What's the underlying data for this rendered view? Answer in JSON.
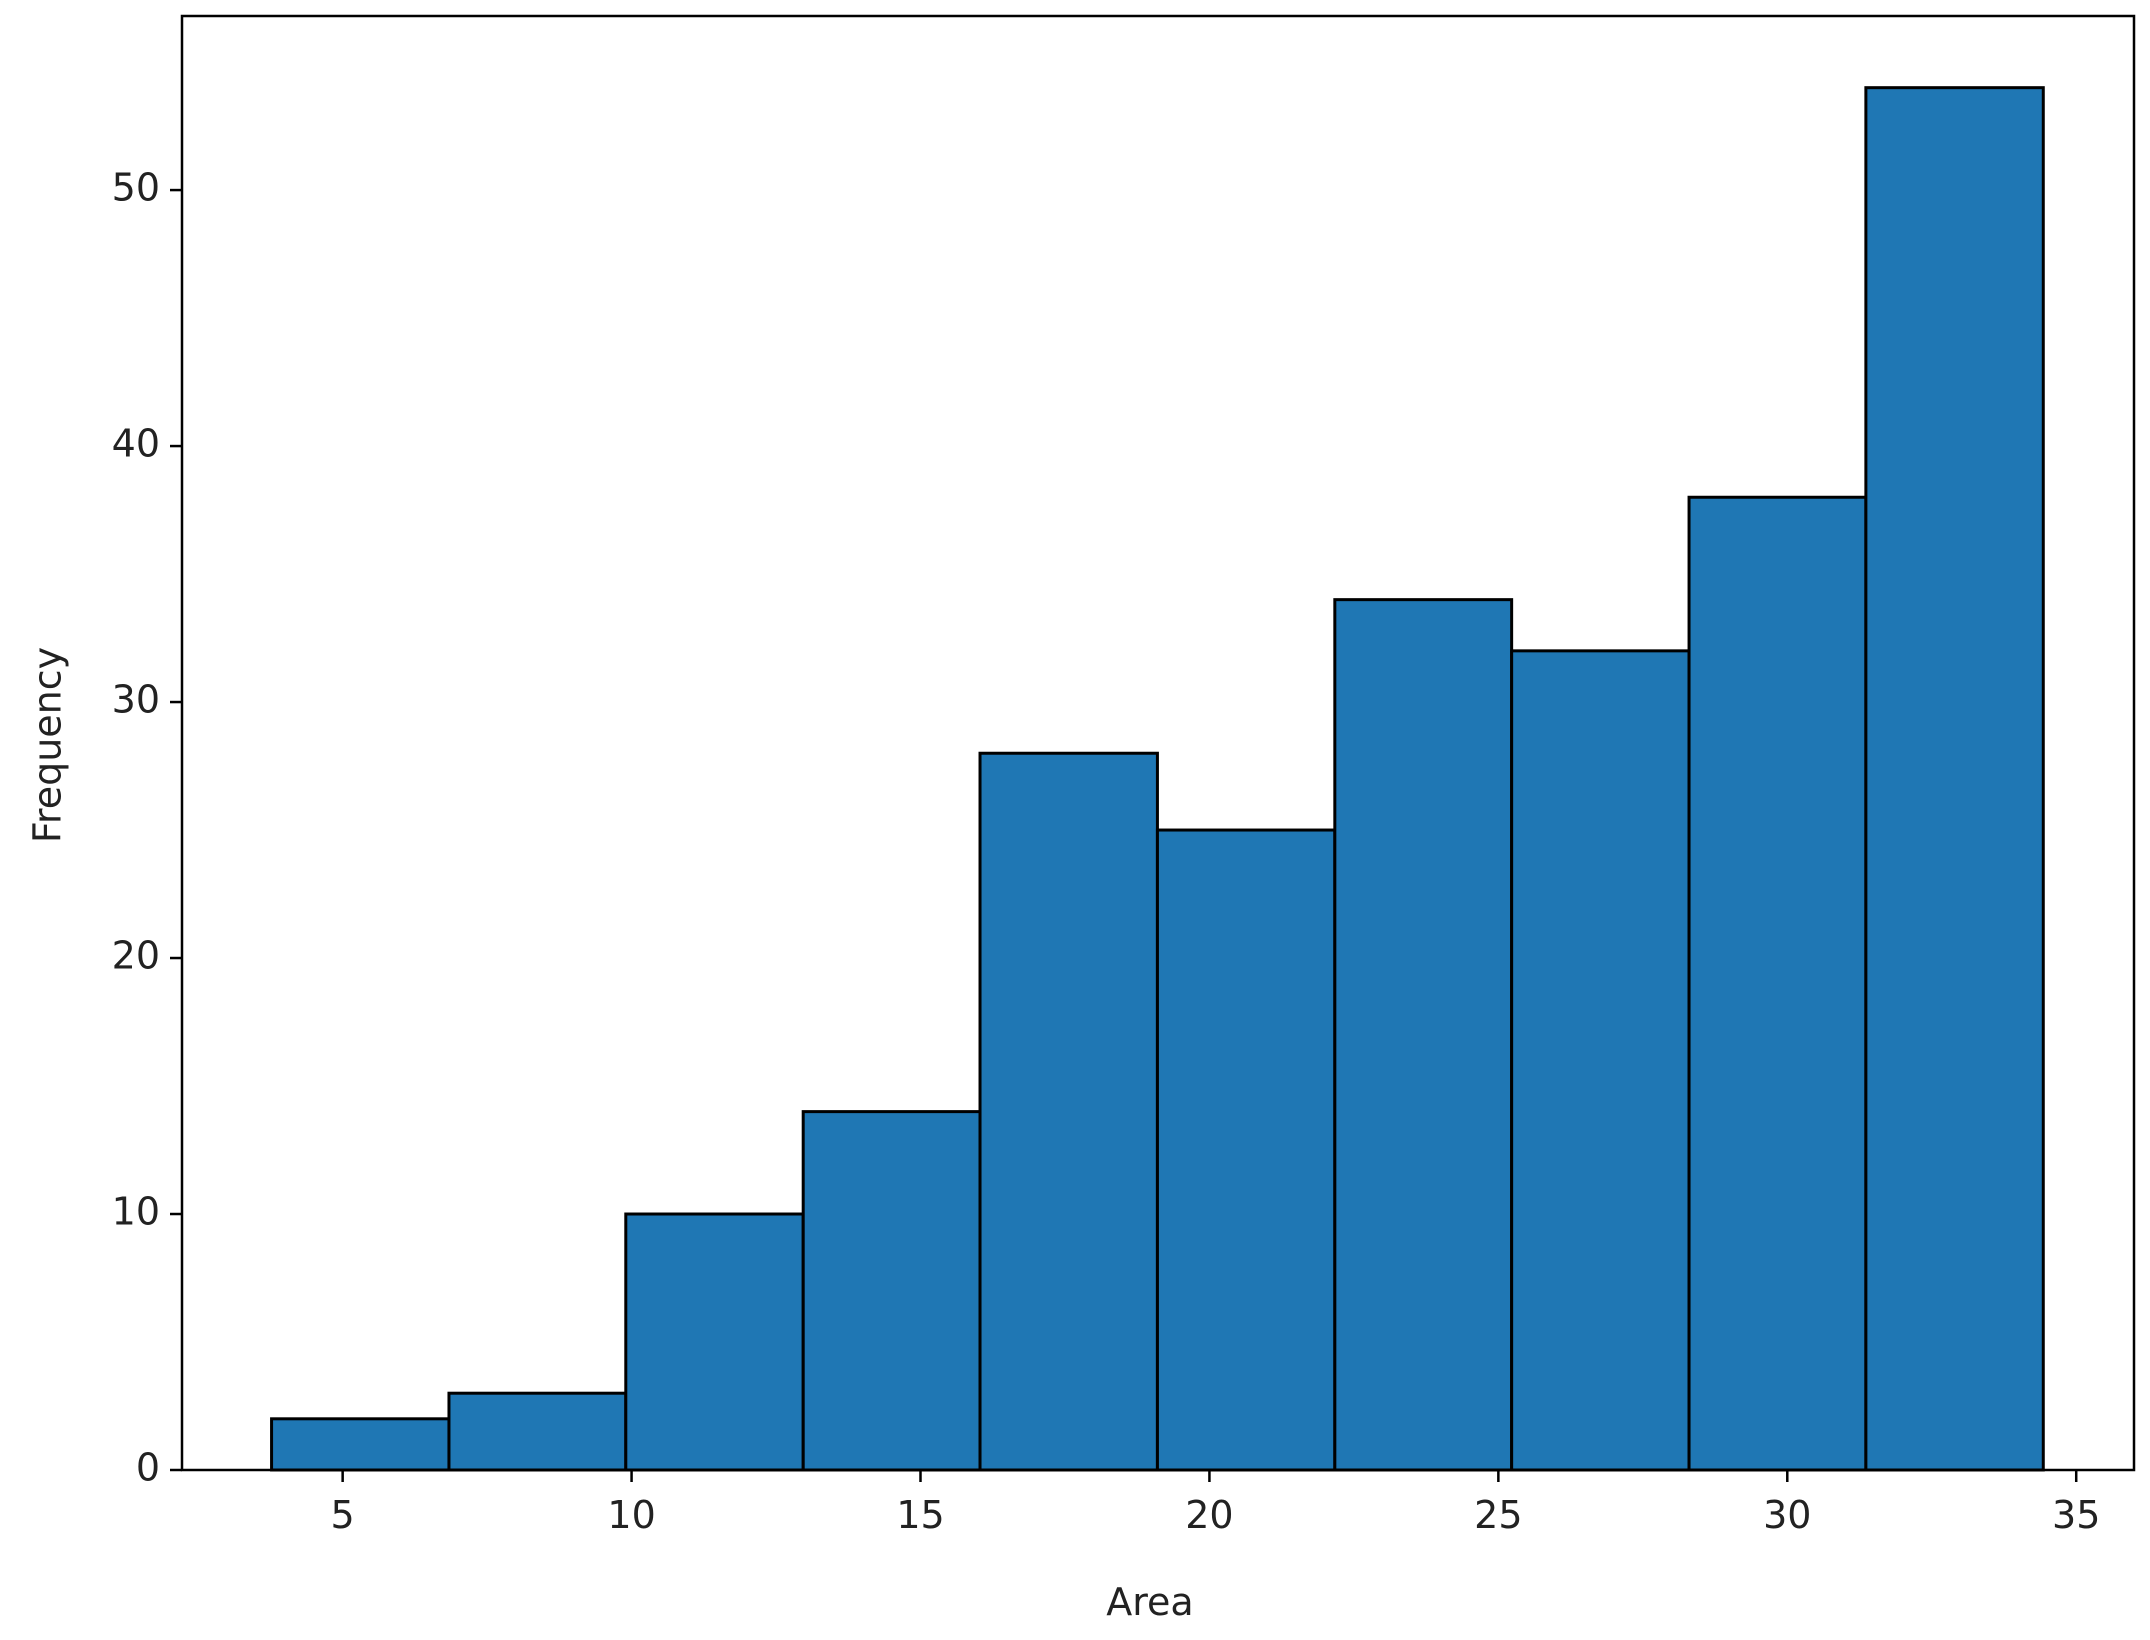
{
  "chart_data": {
    "type": "histogram",
    "x_label": "Area",
    "y_label": "Frequency",
    "bins": [
      3.77,
      6.84,
      9.9,
      12.97,
      16.03,
      19.1,
      22.17,
      25.23,
      28.3,
      31.36,
      34.43
    ],
    "values": [
      2,
      3,
      10,
      14,
      28,
      25,
      34,
      32,
      38,
      54
    ],
    "color": "#1f77b4",
    "edgecolor": "#000000",
    "xlim": [
      2.22,
      36.0
    ],
    "ylim": [
      0,
      56.8
    ],
    "xticks": [
      5,
      10,
      15,
      20,
      25,
      30,
      35
    ],
    "yticks": [
      0,
      10,
      20,
      30,
      40,
      50
    ]
  }
}
